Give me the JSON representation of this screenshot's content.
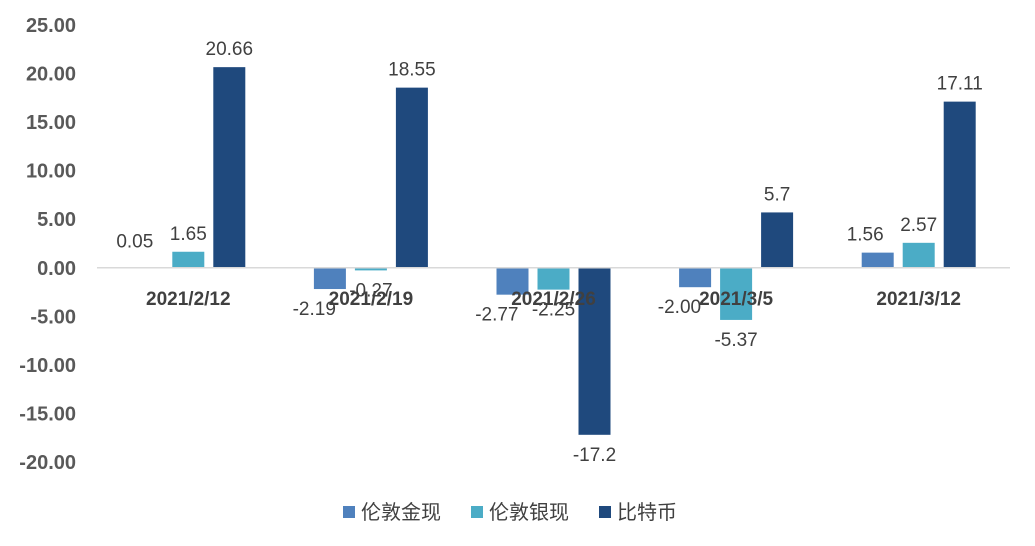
{
  "chart_data": {
    "type": "bar",
    "categories": [
      "2021/2/12",
      "2021/2/19",
      "2021/2/26",
      "2021/3/5",
      "2021/3/12"
    ],
    "series": [
      {
        "name": "伦敦金现",
        "color": "#4f81bd",
        "values": [
          0.05,
          -2.19,
          -2.77,
          -2.0,
          1.56
        ],
        "labels": [
          "0.05",
          "-2.19",
          "-2.77",
          "-2.00",
          "1.56"
        ]
      },
      {
        "name": "伦敦银现",
        "color": "#4bacc6",
        "values": [
          1.65,
          -0.27,
          -2.25,
          -5.37,
          2.57
        ],
        "labels": [
          "1.65",
          "-0.27",
          "-2.25",
          "-5.37",
          "2.57"
        ]
      },
      {
        "name": "比特币",
        "color": "#1f497d",
        "values": [
          20.66,
          18.55,
          -17.2,
          5.7,
          17.11
        ],
        "labels": [
          "20.66",
          "18.55",
          "-17.2",
          "5.7",
          "17.11"
        ]
      }
    ],
    "ylim": [
      -20,
      25
    ],
    "yticks": [
      "25.00",
      "20.00",
      "15.00",
      "10.00",
      "5.00",
      "0.00",
      "-5.00",
      "-10.00",
      "-15.00",
      "-20.00"
    ],
    "grid": false,
    "legend": "bottom",
    "title": "",
    "xlabel": "",
    "ylabel": ""
  }
}
